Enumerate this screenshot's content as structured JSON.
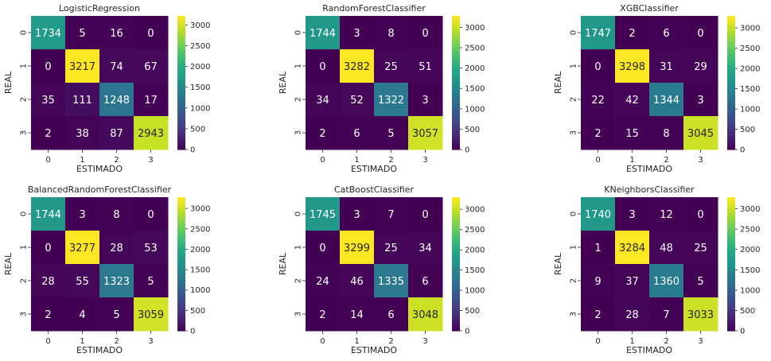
{
  "chart_data": [
    {
      "type": "heatmap",
      "title": "LogisticRegression",
      "xlabel": "ESTIMADO",
      "ylabel": "REAL",
      "x_ticks": [
        "0",
        "1",
        "2",
        "3"
      ],
      "y_ticks": [
        "0",
        "1",
        "2",
        "3"
      ],
      "matrix": [
        [
          1734,
          5,
          16,
          0
        ],
        [
          0,
          3217,
          74,
          67
        ],
        [
          35,
          111,
          1248,
          17
        ],
        [
          2,
          38,
          87,
          2943
        ]
      ],
      "colorbar_ticks": [
        0,
        500,
        1000,
        1500,
        2000,
        2500,
        3000
      ],
      "colorbar_range": [
        0,
        3217
      ]
    },
    {
      "type": "heatmap",
      "title": "RandomForestClassifier",
      "xlabel": "ESTIMADO",
      "ylabel": "REAL",
      "x_ticks": [
        "0",
        "1",
        "2",
        "3"
      ],
      "y_ticks": [
        "0",
        "1",
        "2",
        "3"
      ],
      "matrix": [
        [
          1744,
          3,
          8,
          0
        ],
        [
          0,
          3282,
          25,
          51
        ],
        [
          34,
          52,
          1322,
          3
        ],
        [
          2,
          6,
          5,
          3057
        ]
      ],
      "colorbar_ticks": [
        0,
        500,
        1000,
        1500,
        2000,
        2500,
        3000
      ],
      "colorbar_range": [
        0,
        3282
      ]
    },
    {
      "type": "heatmap",
      "title": "XGBClassifier",
      "xlabel": "ESTIMADO",
      "ylabel": "REAL",
      "x_ticks": [
        "0",
        "1",
        "2",
        "3"
      ],
      "y_ticks": [
        "0",
        "1",
        "2",
        "3"
      ],
      "matrix": [
        [
          1747,
          2,
          6,
          0
        ],
        [
          0,
          3298,
          31,
          29
        ],
        [
          22,
          42,
          1344,
          3
        ],
        [
          2,
          15,
          8,
          3045
        ]
      ],
      "colorbar_ticks": [
        0,
        500,
        1000,
        1500,
        2000,
        2500,
        3000
      ],
      "colorbar_range": [
        0,
        3298
      ]
    },
    {
      "type": "heatmap",
      "title": "BalancedRandomForestClassifier",
      "xlabel": "ESTIMADO",
      "ylabel": "REAL",
      "x_ticks": [
        "0",
        "1",
        "2",
        "3"
      ],
      "y_ticks": [
        "0",
        "1",
        "2",
        "3"
      ],
      "matrix": [
        [
          1744,
          3,
          8,
          0
        ],
        [
          0,
          3277,
          28,
          53
        ],
        [
          28,
          55,
          1323,
          5
        ],
        [
          2,
          4,
          5,
          3059
        ]
      ],
      "colorbar_ticks": [
        0,
        500,
        1000,
        1500,
        2000,
        2500,
        3000
      ],
      "colorbar_range": [
        0,
        3277
      ]
    },
    {
      "type": "heatmap",
      "title": "CatBoostClassifier",
      "xlabel": "ESTIMADO",
      "ylabel": "REAL",
      "x_ticks": [
        "0",
        "1",
        "2",
        "3"
      ],
      "y_ticks": [
        "0",
        "1",
        "2",
        "3"
      ],
      "matrix": [
        [
          1745,
          3,
          7,
          0
        ],
        [
          0,
          3299,
          25,
          34
        ],
        [
          24,
          46,
          1335,
          6
        ],
        [
          2,
          14,
          6,
          3048
        ]
      ],
      "colorbar_ticks": [
        0,
        500,
        1000,
        1500,
        2000,
        2500,
        3000
      ],
      "colorbar_range": [
        0,
        3299
      ]
    },
    {
      "type": "heatmap",
      "title": "KNeighborsClassifier",
      "xlabel": "ESTIMADO",
      "ylabel": "REAL",
      "x_ticks": [
        "0",
        "1",
        "2",
        "3"
      ],
      "y_ticks": [
        "0",
        "1",
        "2",
        "3"
      ],
      "matrix": [
        [
          1740,
          3,
          12,
          0
        ],
        [
          1,
          3284,
          48,
          25
        ],
        [
          9,
          37,
          1360,
          5
        ],
        [
          2,
          28,
          7,
          3033
        ]
      ],
      "colorbar_ticks": [
        0,
        500,
        1000,
        1500,
        2000,
        2500,
        3000
      ],
      "colorbar_range": [
        0,
        3284
      ]
    }
  ]
}
